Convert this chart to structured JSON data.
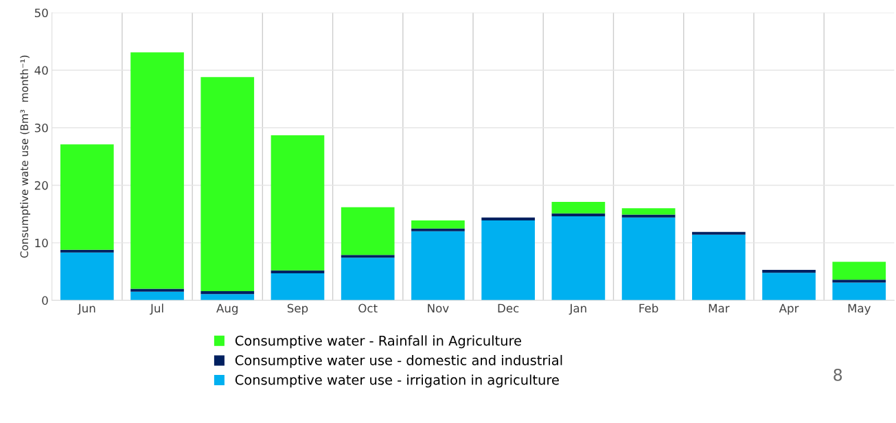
{
  "chart_data": {
    "type": "bar",
    "stacked": true,
    "ylabel": "Consumptive wate use (Bm³  month⁻¹)",
    "categories": [
      "Jun",
      "Jul",
      "Aug",
      "Sep",
      "Oct",
      "Nov",
      "Dec",
      "Jan",
      "Feb",
      "Mar",
      "Apr",
      "May"
    ],
    "series": [
      {
        "name": "Consumptive water use - irrigation in agriculture",
        "color": "#00b0f0",
        "values": [
          8.3,
          1.5,
          1.1,
          4.7,
          7.4,
          12.0,
          13.9,
          14.6,
          14.4,
          11.4,
          4.8,
          3.1
        ]
      },
      {
        "name": "Consumptive water use - domestic and industrial",
        "color": "#002060",
        "values": [
          0.5,
          0.5,
          0.5,
          0.5,
          0.5,
          0.5,
          0.5,
          0.5,
          0.5,
          0.5,
          0.5,
          0.5
        ]
      },
      {
        "name": "Consumptive water - Rainfall in Agriculture",
        "color": "#33ff1f",
        "values": [
          18.3,
          41.1,
          37.2,
          23.5,
          8.3,
          1.4,
          0,
          2.0,
          1.1,
          0,
          0,
          3.1
        ]
      }
    ],
    "ylim": [
      0,
      50
    ],
    "yticks": [
      0,
      10,
      20,
      30,
      40,
      50
    ],
    "grid": true,
    "legend": "bottom",
    "annotations": [
      "8"
    ]
  }
}
